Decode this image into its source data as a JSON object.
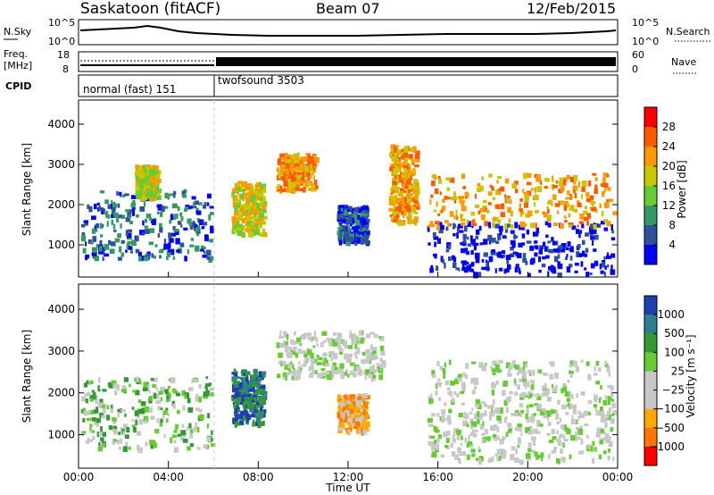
{
  "header": {
    "station": "Saskatoon (fitACF)",
    "beam": "Beam 07",
    "date": "12/Feb/2015"
  },
  "strip_panels": {
    "nsky": {
      "label": "N.Sky",
      "ticks": [
        "10^5",
        "10^0"
      ]
    },
    "nsearch": {
      "label": "N.Search",
      "ticks": [
        "10^5",
        "10^0"
      ]
    },
    "freq": {
      "label_line1": "Freq.",
      "label_line2": "[MHz]",
      "ticks": [
        "18",
        "8"
      ]
    },
    "nave": {
      "label": "Nave",
      "ticks": [
        "60",
        "0"
      ]
    },
    "cpid": {
      "label": "CPID",
      "modes": [
        {
          "text": "normal (fast) 151",
          "start_hour": 0,
          "end_hour": 6
        },
        {
          "text": "twofsound 3503",
          "start_hour": 6,
          "end_hour": 24
        }
      ]
    }
  },
  "chart_data": [
    {
      "type": "heatmap",
      "quantity": "Power",
      "xlabel": "",
      "ylabel": "Slant Range [km]",
      "xlim": [
        0,
        24
      ],
      "ylim": [
        200,
        4600
      ],
      "yticks": [
        1000,
        2000,
        3000,
        4000
      ],
      "colorbar": {
        "label": "Power [dB]",
        "ticks": [
          "28",
          "24",
          "20",
          "16",
          "12",
          "8",
          "4"
        ],
        "colors": [
          "#ff0000",
          "#ff5a00",
          "#ff9900",
          "#c8c800",
          "#66cc33",
          "#339966",
          "#2f4f9f",
          "#0000ff"
        ]
      },
      "scatter_regions": [
        {
          "t0": 0.1,
          "t1": 5.9,
          "r0": 700,
          "r1": 2400,
          "level": 6
        },
        {
          "t0": 2.5,
          "t1": 3.5,
          "r0": 2200,
          "r1": 3000,
          "level": 3
        },
        {
          "t0": 6.8,
          "t1": 8.2,
          "r0": 1300,
          "r1": 2600,
          "level": 3
        },
        {
          "t0": 8.8,
          "t1": 10.5,
          "r0": 2400,
          "r1": 3300,
          "level": 2
        },
        {
          "t0": 11.5,
          "t1": 12.8,
          "r0": 1100,
          "r1": 2000,
          "level": 6
        },
        {
          "t0": 13.8,
          "t1": 15.0,
          "r0": 1600,
          "r1": 3500,
          "level": 2
        },
        {
          "t0": 15.5,
          "t1": 23.8,
          "r0": 300,
          "r1": 1600,
          "level": 7
        },
        {
          "t0": 15.5,
          "t1": 23.8,
          "r0": 1500,
          "r1": 2800,
          "level": 2
        }
      ]
    },
    {
      "type": "heatmap",
      "quantity": "Velocity",
      "xlabel": "Time UT",
      "ylabel": "Slant Range [km]",
      "xlim": [
        0,
        24
      ],
      "ylim": [
        200,
        4600
      ],
      "xticks": [
        "00:00",
        "04:00",
        "08:00",
        "12:00",
        "16:00",
        "20:00",
        "00:00"
      ],
      "yticks": [
        1000,
        2000,
        3000,
        4000
      ],
      "colorbar": {
        "label": "Velocity [m s⁻¹]",
        "ticks": [
          "1000",
          "500",
          "100",
          "25",
          "−25",
          "−100",
          "−500",
          "−1000"
        ],
        "colors": [
          "#1f3fae",
          "#2d7e8f",
          "#339933",
          "#66cc33",
          "#c8c8c8",
          "#c8c8c8",
          "#ffaa00",
          "#ff7700",
          "#ff0000"
        ]
      },
      "scatter_regions": [
        {
          "t0": 0.1,
          "t1": 5.9,
          "r0": 700,
          "r1": 2400,
          "level": 3
        },
        {
          "t0": 6.8,
          "t1": 8.2,
          "r0": 1300,
          "r1": 2600,
          "level": 1
        },
        {
          "t0": 8.8,
          "t1": 13.5,
          "r0": 2400,
          "r1": 3500,
          "level": 4
        },
        {
          "t0": 11.5,
          "t1": 12.8,
          "r0": 1100,
          "r1": 2000,
          "level": 6
        },
        {
          "t0": 15.5,
          "t1": 23.8,
          "r0": 400,
          "r1": 1600,
          "level": 4
        },
        {
          "t0": 15.5,
          "t1": 23.8,
          "r0": 1500,
          "r1": 2800,
          "level": 4
        }
      ]
    }
  ]
}
